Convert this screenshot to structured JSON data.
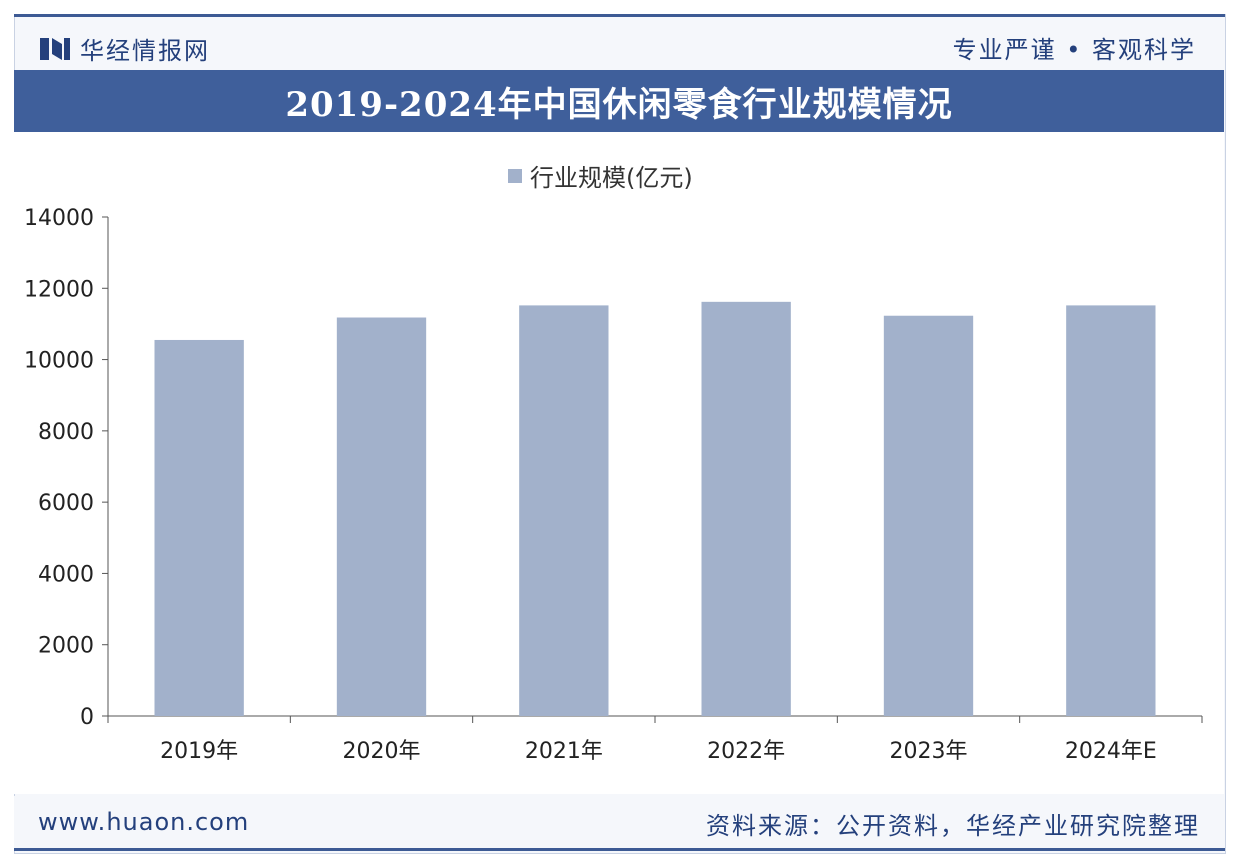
{
  "header": {
    "brand": "华经情报网",
    "slogan": "专业严谨 • 客观科学"
  },
  "title": "2019-2024年中国休闲零食行业规模情况",
  "footer": {
    "site": "www.huaon.com",
    "source": "资料来源：公开资料，华经产业研究院整理"
  },
  "colors": {
    "bar": "#a2b1cb",
    "accent": "#3f5f9b",
    "text": "#24407c"
  },
  "chart_data": {
    "type": "bar",
    "title": "2019-2024年中国休闲零食行业规模情况",
    "legend": [
      "行业规模(亿元)"
    ],
    "series": [
      {
        "name": "行业规模(亿元)",
        "values": [
          10550,
          11180,
          11520,
          11620,
          11230,
          11520
        ]
      }
    ],
    "categories": [
      "2019年",
      "2020年",
      "2021年",
      "2022年",
      "2023年",
      "2024年E"
    ],
    "ylim": [
      0,
      14000
    ],
    "yticks": [
      0,
      2000,
      4000,
      6000,
      8000,
      10000,
      12000,
      14000
    ],
    "xlabel": "",
    "ylabel": ""
  }
}
